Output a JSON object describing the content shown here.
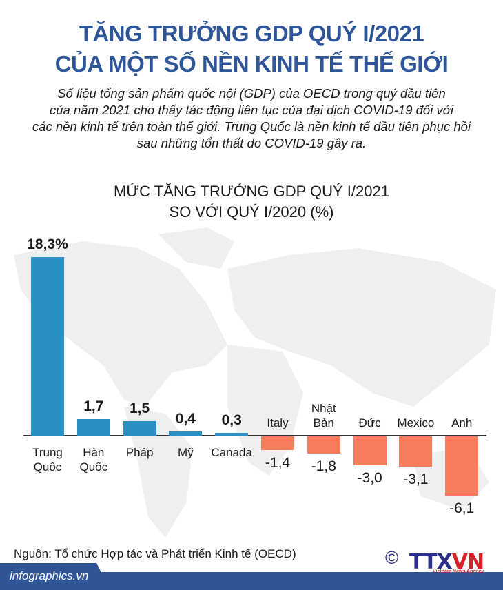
{
  "header": {
    "title_line1": "TĂNG TRƯỞNG GDP QUÝ I/2021",
    "title_line2": "CỦA MỘT SỐ NỀN KINH TẾ THẾ GIỚI",
    "intro_lines": [
      "Số liệu tổng sản phẩm quốc nội (GDP) của OECD trong quý đầu tiên",
      "của năm 2021 cho thấy tác động liên tục của đại dịch COVID-19 đối với",
      "các nền kinh tế trên toàn thế giới. Trung Quốc là nền kinh tế đầu tiên phục hồi",
      "sau những tổn thất do COVID-19 gây ra."
    ]
  },
  "chart_data": {
    "type": "bar",
    "title": "MỨC TĂNG TRƯỞNG GDP QUÝ I/2021",
    "subtitle": "SO VỚI QUÝ I/2020 (%)",
    "categories": [
      "Trung Quốc",
      "Hàn Quốc",
      "Pháp",
      "Mỹ",
      "Canada",
      "Italy",
      "Nhật Bản",
      "Đức",
      "Mexico",
      "Anh"
    ],
    "values": [
      18.3,
      1.7,
      1.5,
      0.4,
      0.3,
      -1.4,
      -1.8,
      -3.0,
      -3.1,
      -6.1
    ],
    "labels": [
      "18,3%",
      "1,7",
      "1,5",
      "0,4",
      "0,3",
      "-1,4",
      "-1,8",
      "-3,0",
      "-3,1",
      "-6,1"
    ],
    "xlabel": "",
    "ylabel": "%",
    "colors": {
      "positive": "#2a8fc2",
      "negative": "#f77e5c"
    },
    "grid": false
  },
  "footer": {
    "source": "Nguồn: Tổ chức Hợp tác và Phát triển Kinh tế (OECD)",
    "site": "infographics.vn",
    "copyright": "©",
    "logo_text": "TTX",
    "logo_red": "VN",
    "logo_tagline": "Vietnam News Agency"
  }
}
